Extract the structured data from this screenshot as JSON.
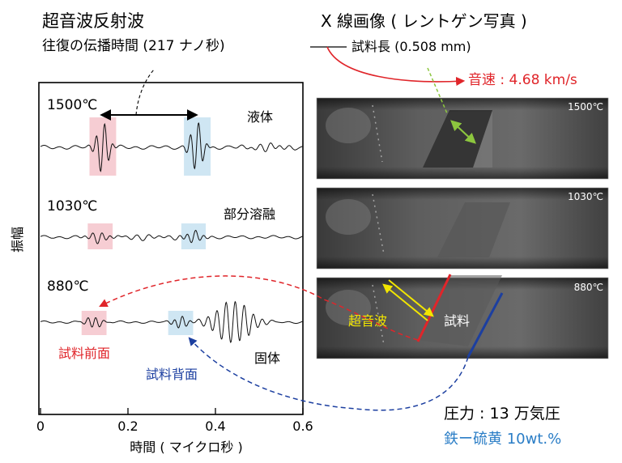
{
  "header": {
    "ultrasound_title": "超音波反射波",
    "travel_time": "往復の伝播時間 (217 ナノ秒)",
    "xray_title": "X 線画像 ( レントゲン写真 )",
    "sample_length": "試料長 (0.508 mm)",
    "sound_velocity": "音速 : 4.68 km/s"
  },
  "waveform_plot": {
    "ylabel": "振幅",
    "xlabel": "時間 ( マイクロ秒 )",
    "xticks": [
      "0",
      "0.2",
      "0.4",
      "0.6"
    ],
    "traces": [
      {
        "temp": "1500℃",
        "state": "液体"
      },
      {
        "temp": "1030℃",
        "state": "部分溶融"
      },
      {
        "temp": "880℃",
        "state": "固体"
      }
    ],
    "front_label": "試料前面",
    "back_label": "試料背面"
  },
  "xray_images": [
    {
      "temp": "1500℃"
    },
    {
      "temp": "1030℃"
    },
    {
      "temp": "880℃",
      "ultrasound_label": "超音波",
      "sample_label": "試料"
    }
  ],
  "conditions": {
    "pressure": "圧力 : 13 万気圧",
    "composition": "鉄ー硫黄 10wt.%"
  },
  "colors": {
    "red": "#e0252a",
    "blue": "#1c3fa0",
    "green": "#8cc63e",
    "yellow": "#f2e600",
    "front_highlight": "#f6cdd3",
    "back_highlight": "#cfe6f3"
  }
}
